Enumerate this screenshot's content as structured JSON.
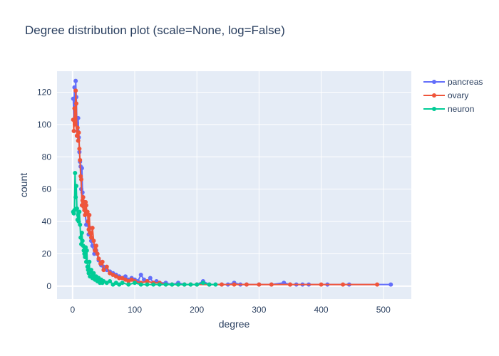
{
  "chart_data": {
    "type": "line",
    "title": "Degree distribution plot (scale=None, log=False)",
    "xlabel": "degree",
    "ylabel": "count",
    "xlim": [
      -25,
      545
    ],
    "ylim": [
      -8,
      133
    ],
    "x_ticks": [
      0,
      100,
      200,
      300,
      400,
      500
    ],
    "y_ticks": [
      0,
      20,
      40,
      60,
      80,
      100,
      120
    ],
    "grid": true,
    "legend_position": "top-right",
    "plot_background": "#e5ecf6",
    "series": [
      {
        "name": "pancreas",
        "color": "#636efa",
        "x": [
          1,
          2,
          3,
          4,
          5,
          6,
          7,
          8,
          9,
          10,
          11,
          12,
          13,
          14,
          15,
          16,
          17,
          18,
          19,
          20,
          22,
          24,
          26,
          28,
          30,
          32,
          35,
          38,
          42,
          46,
          50,
          55,
          60,
          65,
          70,
          75,
          80,
          85,
          90,
          95,
          100,
          105,
          110,
          115,
          120,
          125,
          130,
          135,
          140,
          150,
          160,
          170,
          180,
          190,
          200,
          210,
          220,
          230,
          240,
          250,
          260,
          270,
          280,
          300,
          320,
          340,
          350,
          360,
          370,
          380,
          410,
          445,
          512
        ],
        "y": [
          116,
          103,
          123,
          105,
          127,
          117,
          101,
          96,
          104,
          92,
          83,
          77,
          74,
          60,
          73,
          58,
          55,
          50,
          52,
          47,
          38,
          40,
          32,
          36,
          28,
          25,
          20,
          22,
          16,
          13,
          12,
          10,
          9,
          8,
          7,
          6,
          5,
          6,
          4,
          5,
          4,
          3,
          7,
          4,
          3,
          5,
          2,
          3,
          2,
          2,
          1,
          2,
          1,
          1,
          1,
          3,
          1,
          1,
          1,
          1,
          2,
          1,
          1,
          1,
          1,
          2,
          1,
          1,
          1,
          1,
          1,
          1,
          1
        ]
      },
      {
        "name": "ovary",
        "color": "#ef553b",
        "x": [
          1,
          2,
          3,
          4,
          5,
          6,
          7,
          8,
          9,
          10,
          11,
          12,
          13,
          14,
          15,
          16,
          17,
          18,
          19,
          20,
          21,
          22,
          23,
          24,
          25,
          26,
          27,
          28,
          30,
          32,
          34,
          36,
          38,
          40,
          42,
          45,
          48,
          50,
          55,
          60,
          65,
          70,
          75,
          80,
          85,
          90,
          95,
          100,
          110,
          120,
          130,
          140,
          150,
          160,
          170,
          180,
          190,
          200,
          220,
          240,
          260,
          280,
          300,
          320,
          350,
          400,
          435,
          490
        ],
        "y": [
          103,
          96,
          110,
          100,
          121,
          113,
          93,
          98,
          90,
          95,
          85,
          78,
          68,
          66,
          50,
          53,
          55,
          49,
          47,
          44,
          52,
          50,
          45,
          46,
          40,
          35,
          44,
          33,
          30,
          36,
          28,
          22,
          25,
          20,
          17,
          14,
          15,
          10,
          12,
          8,
          7,
          6,
          5,
          5,
          4,
          3,
          4,
          3,
          2,
          3,
          2,
          2,
          1,
          1,
          1,
          1,
          1,
          1,
          1,
          1,
          1,
          1,
          1,
          1,
          1,
          1,
          1,
          1
        ]
      },
      {
        "name": "neuron",
        "color": "#00cc96",
        "x": [
          1,
          2,
          3,
          4,
          5,
          6,
          7,
          8,
          9,
          10,
          11,
          12,
          13,
          14,
          15,
          16,
          17,
          18,
          19,
          20,
          21,
          22,
          23,
          24,
          25,
          26,
          27,
          28,
          30,
          32,
          34,
          36,
          38,
          40,
          42,
          44,
          46,
          48,
          50,
          55,
          60,
          65,
          70,
          75,
          80,
          90,
          100,
          110,
          120,
          130,
          140,
          150,
          160,
          170,
          180,
          190,
          200,
          210,
          220,
          230
        ],
        "y": [
          46,
          45,
          47,
          70,
          55,
          62,
          48,
          41,
          44,
          40,
          46,
          38,
          30,
          26,
          33,
          28,
          25,
          22,
          20,
          18,
          24,
          15,
          22,
          12,
          10,
          8,
          15,
          6,
          10,
          5,
          8,
          4,
          6,
          3,
          5,
          2,
          4,
          2,
          3,
          2,
          3,
          1,
          2,
          1,
          2,
          1,
          2,
          1,
          1,
          1,
          1,
          1,
          1,
          1,
          1,
          1,
          1,
          2,
          1,
          1
        ]
      }
    ]
  }
}
